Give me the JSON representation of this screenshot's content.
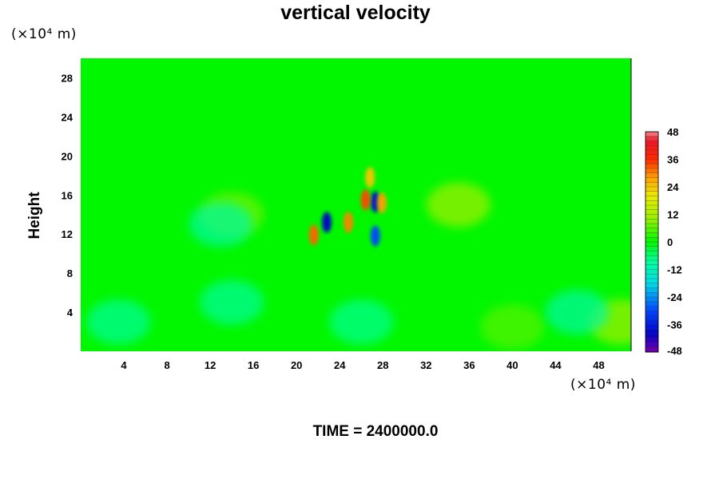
{
  "chart_data": {
    "type": "heatmap",
    "title": "vertical velocity",
    "xlabel": "",
    "ylabel": "Height",
    "x_unit": "(×10⁴ m)",
    "y_unit": "(×10⁴ m)",
    "xlim": [
      0,
      51
    ],
    "ylim": [
      0,
      30
    ],
    "x_ticks": [
      "4",
      "8",
      "12",
      "16",
      "20",
      "24",
      "28",
      "32",
      "36",
      "40",
      "44",
      "48"
    ],
    "x_tick_values": [
      4,
      8,
      12,
      16,
      20,
      24,
      28,
      32,
      36,
      40,
      44,
      48
    ],
    "y_ticks": [
      "4",
      "8",
      "12",
      "16",
      "20",
      "24",
      "28"
    ],
    "y_tick_values": [
      4,
      8,
      12,
      16,
      20,
      24,
      28
    ],
    "colorbar": {
      "ticks": [
        "48",
        "36",
        "24",
        "12",
        "0",
        "-12",
        "-24",
        "-36",
        "-48"
      ],
      "tick_values": [
        48,
        36,
        24,
        12,
        0,
        -12,
        -24,
        -36,
        -48
      ],
      "range": [
        -48,
        48
      ],
      "colormap": "rainbow (purple → blue → cyan → green → yellow → red → pink)"
    },
    "background_value": 0,
    "features": [
      {
        "x": 22.8,
        "y": 13.2,
        "value": -40
      },
      {
        "x": 27.3,
        "y": 15.3,
        "value": -38
      },
      {
        "x": 27.3,
        "y": 11.8,
        "value": -30
      },
      {
        "x": 26.4,
        "y": 15.5,
        "value": 34
      },
      {
        "x": 27.9,
        "y": 15.2,
        "value": 28
      },
      {
        "x": 24.8,
        "y": 13.2,
        "value": 30
      },
      {
        "x": 21.6,
        "y": 11.9,
        "value": 32
      },
      {
        "x": 26.8,
        "y": 17.8,
        "value": 24
      },
      {
        "x": 50,
        "y": 3,
        "value": 12
      },
      {
        "x": 40,
        "y": 2.5,
        "value": 6
      },
      {
        "x": 35,
        "y": 15,
        "value": 12
      },
      {
        "x": 14,
        "y": 14,
        "value": 8
      },
      {
        "x": 3.5,
        "y": 3,
        "value": -9
      },
      {
        "x": 14,
        "y": 5,
        "value": -9
      },
      {
        "x": 26,
        "y": 3,
        "value": -8
      },
      {
        "x": 46,
        "y": 4,
        "value": -10
      },
      {
        "x": 13,
        "y": 13,
        "value": -10
      }
    ]
  },
  "time_label": "TIME = 2400000.0"
}
